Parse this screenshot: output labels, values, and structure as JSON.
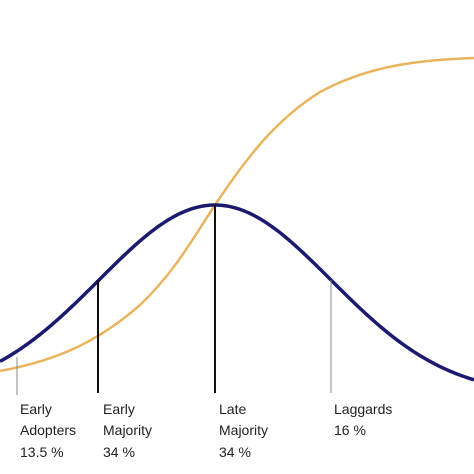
{
  "segments": [
    {
      "lines": [
        "Early",
        "Adopters",
        "13.5 %"
      ]
    },
    {
      "lines": [
        "Early",
        "Majority",
        "34 %"
      ]
    },
    {
      "lines": [
        "Late",
        "Majority",
        "34 %"
      ]
    },
    {
      "lines": [
        "Laggards",
        "16 %"
      ]
    }
  ]
}
